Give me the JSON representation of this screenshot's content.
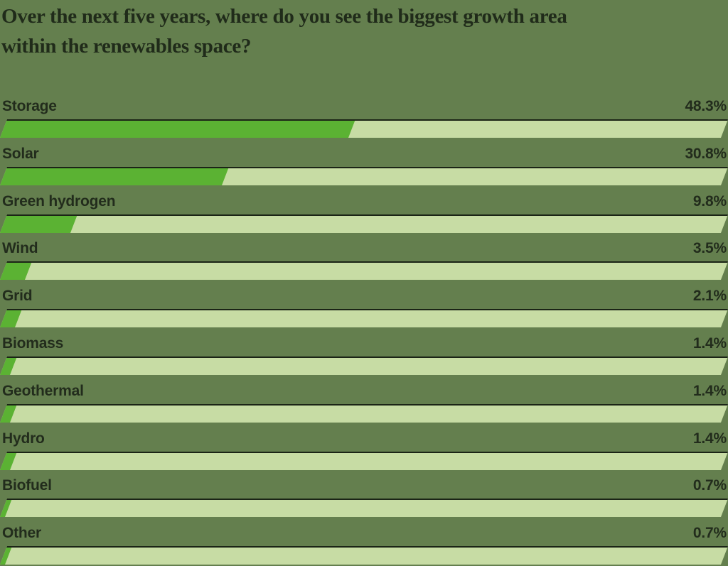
{
  "header": {
    "title_lines": [
      "Over the next five years, where do you see the biggest growth area",
      "within the renewables space?"
    ]
  },
  "chart_data": {
    "type": "bar",
    "orientation": "horizontal",
    "title": "Over the next five years, where do you see the biggest growth area within the renewables space?",
    "categories": [
      "Storage",
      "Solar",
      "Green hydrogen",
      "Wind",
      "Grid",
      "Biomass",
      "Geothermal",
      "Hydro",
      "Biofuel",
      "Other"
    ],
    "values": [
      48.3,
      30.8,
      9.8,
      3.5,
      2.1,
      1.4,
      1.4,
      1.4,
      0.7,
      0.7
    ],
    "value_labels": [
      "48.3%",
      "30.8%",
      "9.8%",
      "3.5%",
      "2.1%",
      "1.4%",
      "1.4%",
      "1.4%",
      "0.7%",
      "0.7%"
    ],
    "xlim": [
      0,
      100
    ],
    "grid": false,
    "legend": false,
    "bar_style": "skewed-parallelogram"
  },
  "colors": {
    "background": "#647f4e",
    "bar_fill": "#5bb233",
    "bar_track": "#c7dca4",
    "bar_top_border": "#1b2416",
    "label_text": "#222c1c",
    "title_text": "#202b1a"
  }
}
